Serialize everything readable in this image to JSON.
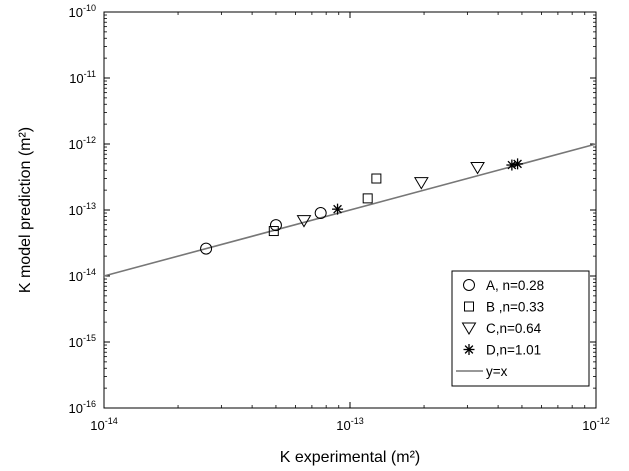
{
  "chart_data": {
    "type": "scatter",
    "xlabel": "K experimental (m²)",
    "ylabel": "K model prediction (m²)",
    "xscale": "log",
    "yscale": "log",
    "xlim": [
      1e-14,
      1e-12
    ],
    "ylim": [
      1e-16,
      1e-10
    ],
    "x_ticks": [
      {
        "base": "10",
        "exp": "-14"
      },
      {
        "base": "10",
        "exp": "-13"
      },
      {
        "base": "10",
        "exp": "-12"
      }
    ],
    "y_ticks": [
      {
        "base": "10",
        "exp": "-16"
      },
      {
        "base": "10",
        "exp": "-15"
      },
      {
        "base": "10",
        "exp": "-14"
      },
      {
        "base": "10",
        "exp": "-13"
      },
      {
        "base": "10",
        "exp": "-12"
      },
      {
        "base": "10",
        "exp": "-11"
      },
      {
        "base": "10",
        "exp": "-10"
      }
    ],
    "grid": false,
    "legend_position": "bottom-right",
    "series": [
      {
        "name": "A, n=0.28",
        "marker": "circle",
        "x": [
          2.6e-14,
          5e-14,
          7.6e-14
        ],
        "y": [
          2.6e-14,
          5.9e-14,
          9e-14
        ]
      },
      {
        "name": "B ,n=0.33",
        "marker": "square",
        "x": [
          4.9e-14,
          1.18e-13,
          1.28e-13
        ],
        "y": [
          4.8e-14,
          1.5e-13,
          3e-13
        ]
      },
      {
        "name": "C,n=0.64",
        "marker": "triangle-down",
        "x": [
          6.5e-14,
          1.95e-13,
          3.3e-13
        ],
        "y": [
          6.9e-14,
          2.6e-13,
          4.4e-13
        ]
      },
      {
        "name": "D,n=1.01",
        "marker": "asterisk",
        "x": [
          8.9e-14,
          4.55e-13,
          4.8e-13
        ],
        "y": [
          1.03e-13,
          4.8e-13,
          5e-13
        ]
      },
      {
        "name": "y=x",
        "marker": "line",
        "x": [
          1e-14,
          1e-12
        ],
        "y": [
          1e-14,
          1e-12
        ]
      }
    ]
  }
}
